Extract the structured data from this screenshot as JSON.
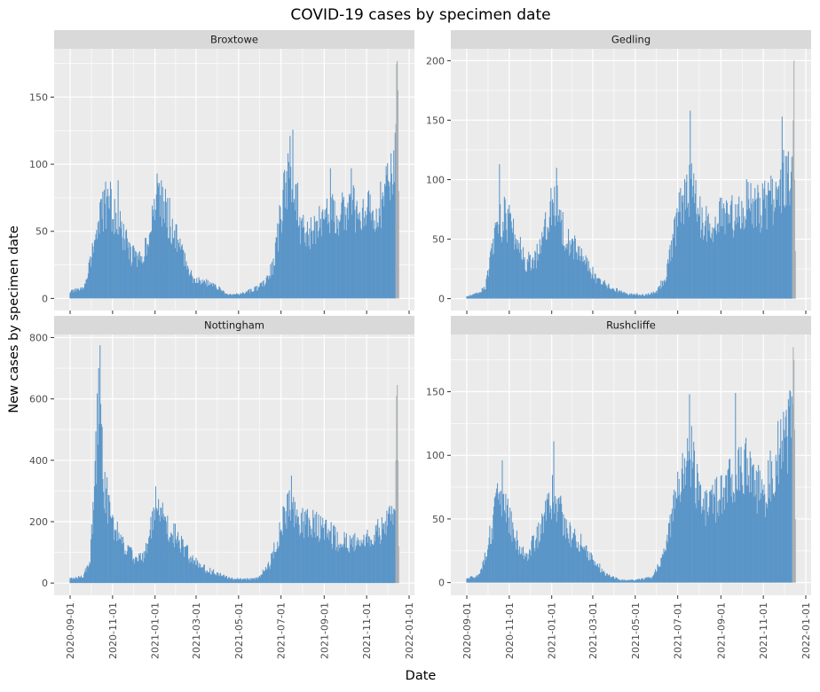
{
  "chart_data": {
    "type": "bar",
    "title": "COVID-19 cases by specimen date",
    "xlabel": "Date",
    "ylabel": "New cases by specimen date",
    "x_ticks": [
      "2020-09-01",
      "2020-11-01",
      "2021-01-01",
      "2021-03-01",
      "2021-05-01",
      "2021-07-01",
      "2021-09-01",
      "2021-11-01",
      "2022-01-01"
    ],
    "date_range": [
      "2020-09-01",
      "2021-12-17"
    ],
    "incomplete_from": "2021-12-13",
    "colors": {
      "complete": "#5a95c8",
      "incomplete": "#a9aeb3",
      "panel_bg": "#ebebeb",
      "strip_bg": "#d9d9d9",
      "grid": "#ffffff"
    },
    "grid": true,
    "facets": [
      {
        "name": "Broxtowe",
        "ylim": [
          -9,
          186
        ],
        "yticks": [
          0,
          50,
          100,
          150
        ],
        "keypoints": [
          [
            "2020-09-01",
            5
          ],
          [
            "2020-09-20",
            7
          ],
          [
            "2020-10-01",
            30
          ],
          [
            "2020-10-12",
            55
          ],
          [
            "2020-10-25",
            72
          ],
          [
            "2020-11-10",
            55
          ],
          [
            "2020-11-25",
            35
          ],
          [
            "2020-12-10",
            28
          ],
          [
            "2020-12-28",
            55
          ],
          [
            "2021-01-05",
            78
          ],
          [
            "2021-01-15",
            68
          ],
          [
            "2021-01-25",
            55
          ],
          [
            "2021-02-10",
            32
          ],
          [
            "2021-02-25",
            15
          ],
          [
            "2021-03-15",
            12
          ],
          [
            "2021-04-01",
            8
          ],
          [
            "2021-04-15",
            3
          ],
          [
            "2021-05-01",
            3
          ],
          [
            "2021-05-20",
            6
          ],
          [
            "2021-06-05",
            10
          ],
          [
            "2021-06-20",
            25
          ],
          [
            "2021-07-05",
            75
          ],
          [
            "2021-07-18",
            100
          ],
          [
            "2021-07-28",
            55
          ],
          [
            "2021-08-10",
            50
          ],
          [
            "2021-08-25",
            55
          ],
          [
            "2021-09-10",
            62
          ],
          [
            "2021-09-25",
            66
          ],
          [
            "2021-10-10",
            68
          ],
          [
            "2021-10-25",
            63
          ],
          [
            "2021-11-10",
            63
          ],
          [
            "2021-11-25",
            75
          ],
          [
            "2021-12-05",
            100
          ],
          [
            "2021-12-12",
            108
          ]
        ],
        "spikes": [
          [
            "2020-10-22",
            87
          ],
          [
            "2020-10-29",
            87
          ],
          [
            "2020-11-09",
            88
          ],
          [
            "2021-01-05",
            86
          ],
          [
            "2021-01-12",
            83
          ],
          [
            "2021-07-14",
            121
          ],
          [
            "2021-09-10",
            97
          ],
          [
            "2021-10-10",
            97
          ]
        ],
        "incomplete": [
          [
            "2021-12-13",
            130
          ],
          [
            "2021-12-14",
            175
          ],
          [
            "2021-12-15",
            177
          ],
          [
            "2021-12-16",
            155
          ],
          [
            "2021-12-17",
            80
          ]
        ]
      },
      {
        "name": "Gedling",
        "ylim": [
          -10,
          210
        ],
        "yticks": [
          0,
          50,
          100,
          150,
          200
        ],
        "keypoints": [
          [
            "2020-09-01",
            2
          ],
          [
            "2020-09-15",
            4
          ],
          [
            "2020-09-28",
            10
          ],
          [
            "2020-10-10",
            50
          ],
          [
            "2020-10-25",
            70
          ],
          [
            "2020-11-10",
            52
          ],
          [
            "2020-11-25",
            30
          ],
          [
            "2020-12-10",
            35
          ],
          [
            "2020-12-28",
            75
          ],
          [
            "2021-01-08",
            80
          ],
          [
            "2021-01-20",
            55
          ],
          [
            "2021-02-05",
            42
          ],
          [
            "2021-02-20",
            28
          ],
          [
            "2021-03-10",
            15
          ],
          [
            "2021-03-30",
            8
          ],
          [
            "2021-04-20",
            4
          ],
          [
            "2021-05-15",
            3
          ],
          [
            "2021-06-01",
            6
          ],
          [
            "2021-06-15",
            20
          ],
          [
            "2021-06-25",
            55
          ],
          [
            "2021-07-10",
            85
          ],
          [
            "2021-07-22",
            95
          ],
          [
            "2021-08-05",
            60
          ],
          [
            "2021-08-25",
            65
          ],
          [
            "2021-09-10",
            72
          ],
          [
            "2021-09-25",
            70
          ],
          [
            "2021-10-10",
            80
          ],
          [
            "2021-10-25",
            75
          ],
          [
            "2021-11-10",
            80
          ],
          [
            "2021-11-25",
            95
          ],
          [
            "2021-12-12",
            110
          ]
        ],
        "spikes": [
          [
            "2020-10-18",
            113
          ],
          [
            "2021-01-08",
            110
          ],
          [
            "2021-07-19",
            158
          ],
          [
            "2021-11-28",
            153
          ]
        ],
        "incomplete": [
          [
            "2021-12-13",
            120
          ],
          [
            "2021-12-14",
            150
          ],
          [
            "2021-12-15",
            200
          ],
          [
            "2021-12-16",
            100
          ],
          [
            "2021-12-17",
            40
          ]
        ]
      },
      {
        "name": "Nottingham",
        "ylim": [
          -40,
          810
        ],
        "yticks": [
          0,
          200,
          400,
          600,
          800
        ],
        "keypoints": [
          [
            "2020-09-01",
            15
          ],
          [
            "2020-09-20",
            20
          ],
          [
            "2020-09-30",
            80
          ],
          [
            "2020-10-06",
            300
          ],
          [
            "2020-10-13",
            620
          ],
          [
            "2020-10-20",
            320
          ],
          [
            "2020-10-30",
            200
          ],
          [
            "2020-11-15",
            130
          ],
          [
            "2020-12-01",
            85
          ],
          [
            "2020-12-15",
            80
          ],
          [
            "2020-12-28",
            190
          ],
          [
            "2021-01-08",
            230
          ],
          [
            "2021-01-25",
            170
          ],
          [
            "2021-02-10",
            120
          ],
          [
            "2021-02-25",
            70
          ],
          [
            "2021-03-15",
            45
          ],
          [
            "2021-04-01",
            30
          ],
          [
            "2021-04-20",
            15
          ],
          [
            "2021-05-10",
            12
          ],
          [
            "2021-05-28",
            15
          ],
          [
            "2021-06-15",
            60
          ],
          [
            "2021-06-28",
            160
          ],
          [
            "2021-07-12",
            250
          ],
          [
            "2021-07-25",
            200
          ],
          [
            "2021-08-15",
            190
          ],
          [
            "2021-09-01",
            180
          ],
          [
            "2021-09-20",
            140
          ],
          [
            "2021-10-10",
            130
          ],
          [
            "2021-10-30",
            140
          ],
          [
            "2021-11-20",
            170
          ],
          [
            "2021-12-05",
            230
          ],
          [
            "2021-12-12",
            270
          ]
        ],
        "spikes": [
          [
            "2020-10-14",
            775
          ],
          [
            "2020-10-12",
            700
          ],
          [
            "2021-01-02",
            315
          ],
          [
            "2021-07-16",
            350
          ]
        ],
        "incomplete": [
          [
            "2021-12-13",
            400
          ],
          [
            "2021-12-14",
            610
          ],
          [
            "2021-12-15",
            645
          ],
          [
            "2021-12-16",
            400
          ],
          [
            "2021-12-17",
            120
          ]
        ]
      },
      {
        "name": "Rushcliffe",
        "ylim": [
          -10,
          195
        ],
        "yticks": [
          0,
          50,
          100,
          150
        ],
        "keypoints": [
          [
            "2020-09-01",
            3
          ],
          [
            "2020-09-20",
            6
          ],
          [
            "2020-10-01",
            30
          ],
          [
            "2020-10-15",
            62
          ],
          [
            "2020-10-28",
            60
          ],
          [
            "2020-11-10",
            35
          ],
          [
            "2020-11-25",
            20
          ],
          [
            "2020-12-15",
            40
          ],
          [
            "2021-01-02",
            70
          ],
          [
            "2021-01-15",
            52
          ],
          [
            "2021-01-30",
            35
          ],
          [
            "2021-02-15",
            30
          ],
          [
            "2021-03-01",
            18
          ],
          [
            "2021-03-20",
            6
          ],
          [
            "2021-04-10",
            2
          ],
          [
            "2021-05-01",
            2
          ],
          [
            "2021-05-25",
            4
          ],
          [
            "2021-06-10",
            20
          ],
          [
            "2021-06-25",
            55
          ],
          [
            "2021-07-10",
            95
          ],
          [
            "2021-07-20",
            100
          ],
          [
            "2021-08-05",
            60
          ],
          [
            "2021-08-25",
            65
          ],
          [
            "2021-09-15",
            80
          ],
          [
            "2021-10-05",
            95
          ],
          [
            "2021-10-20",
            75
          ],
          [
            "2021-11-05",
            70
          ],
          [
            "2021-11-25",
            110
          ],
          [
            "2021-12-12",
            122
          ]
        ],
        "spikes": [
          [
            "2020-10-22",
            96
          ],
          [
            "2021-01-04",
            111
          ],
          [
            "2021-07-18",
            148
          ],
          [
            "2021-09-22",
            149
          ]
        ],
        "incomplete": [
          [
            "2021-12-13",
            140
          ],
          [
            "2021-12-14",
            185
          ],
          [
            "2021-12-15",
            175
          ],
          [
            "2021-12-16",
            120
          ],
          [
            "2021-12-17",
            50
          ]
        ]
      }
    ]
  }
}
